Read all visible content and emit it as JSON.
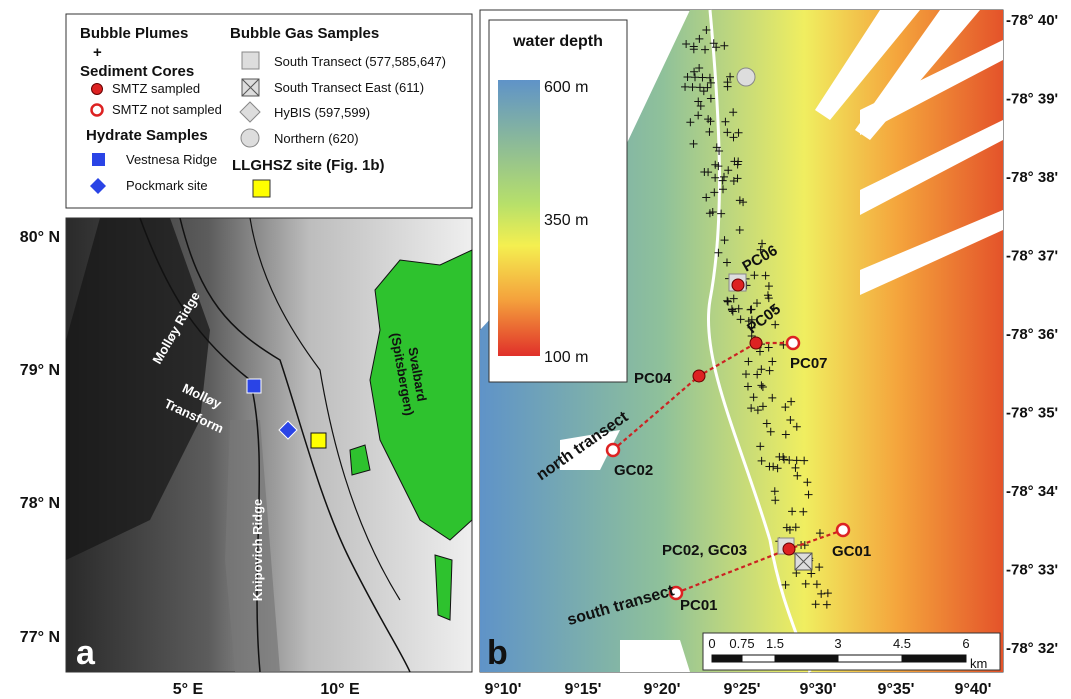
{
  "legend": {
    "bubble_plumes": "Bubble Plumes",
    "plume_symbol": "+",
    "sediment_cores": "Sediment Cores",
    "smtz_sampled": "SMTZ sampled",
    "smtz_not_sampled": "SMTZ not sampled",
    "hydrate_samples": "Hydrate Samples",
    "vestnesa": "Vestnesa Ridge",
    "pockmark": "Pockmark site",
    "bubble_gas_samples": "Bubble Gas Samples",
    "gas": [
      "South Transect (577,585,647)",
      "South Transect East (611)",
      "HyBIS (597,599)",
      "Northern (620)"
    ],
    "llghsz": "LLGHSZ site (Fig. 1b)"
  },
  "panel_a": {
    "label": "a",
    "lat_labels": [
      "80° N",
      "79° N",
      "78° N",
      "77° N"
    ],
    "lon_labels": [
      "5° E",
      "10° E"
    ],
    "places": {
      "molloy_ridge": "Molløy Ridge",
      "molloy_transform": [
        "Molløy",
        "Transform"
      ],
      "knipovich": "Knipovich Ridge",
      "svalbard": [
        "Svalbard",
        "(Spitsbergen)"
      ]
    }
  },
  "panel_b": {
    "label": "b",
    "colorbar": {
      "title": "water depth",
      "labels": [
        "600 m",
        "350 m",
        "100 m"
      ]
    },
    "lat_labels": [
      "-78° 40'",
      "-78° 39'",
      "-78° 38'",
      "-78° 37'",
      "-78° 36'",
      "-78° 35'",
      "-78° 34'",
      "-78° 33'",
      "-78° 32'"
    ],
    "lon_labels": [
      "9°10'",
      "9°15'",
      "9°20'",
      "9°25'",
      "9°30'",
      "9°35'",
      "9°40'"
    ],
    "stations": [
      "PC06",
      "PC05",
      "PC07",
      "PC04",
      "GC02",
      "GC01",
      "PC02, GC03",
      "PC01"
    ],
    "transects": [
      "north transect",
      "south transect"
    ],
    "scale": [
      "0",
      "0.75",
      "1.5",
      "3",
      "4.5",
      "6",
      "km"
    ]
  }
}
